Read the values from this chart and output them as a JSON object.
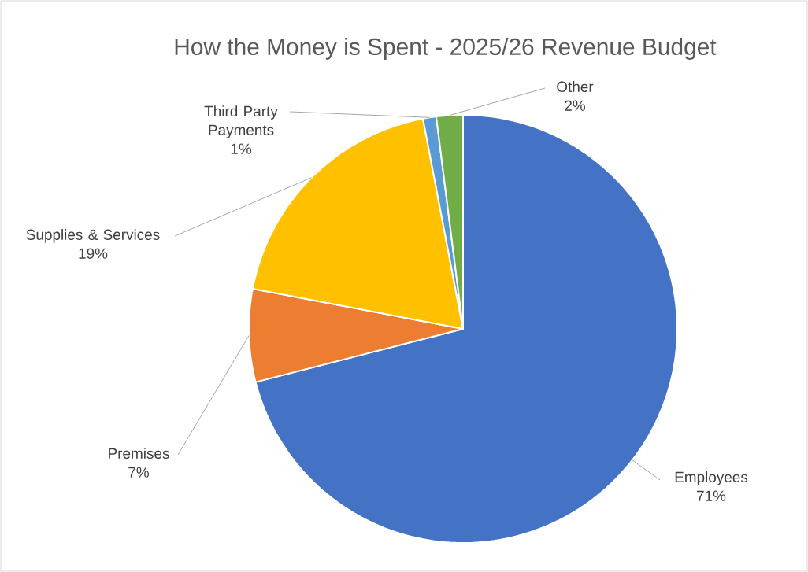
{
  "chart_data": {
    "type": "pie",
    "title": "How the Money is Spent - 2025/26 Revenue Budget",
    "categories": [
      "Employees",
      "Premises",
      "Supplies & Services",
      "Third Party Payments",
      "Other"
    ],
    "values": [
      71,
      7,
      19,
      1,
      2
    ],
    "value_labels": [
      "71%",
      "7%",
      "19%",
      "1%",
      "2%"
    ],
    "colors": [
      "#4472c4",
      "#ed7d31",
      "#ffc000",
      "#5b9bd5",
      "#70ad47"
    ]
  }
}
